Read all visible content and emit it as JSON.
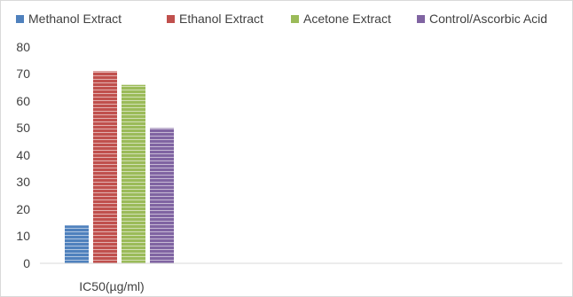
{
  "chart_data": {
    "type": "bar",
    "categories": [
      "IC50(µg/ml)"
    ],
    "series": [
      {
        "name": "Methanol Extract",
        "values": [
          14
        ],
        "color": "#4f81bd"
      },
      {
        "name": "Ethanol Extract",
        "values": [
          71
        ],
        "color": "#c0504d"
      },
      {
        "name": "Acetone Extract",
        "values": [
          66
        ],
        "color": "#9bbb59"
      },
      {
        "name": "Control/Ascorbic Acid",
        "values": [
          50
        ],
        "color": "#8064a2"
      }
    ],
    "yticks": [
      "0",
      "10",
      "20",
      "30",
      "40",
      "50",
      "60",
      "70",
      "80"
    ],
    "ylim": [
      0,
      80
    ],
    "legend_position": "top",
    "grid": false,
    "bar_fill": "horizontal-stripes"
  }
}
